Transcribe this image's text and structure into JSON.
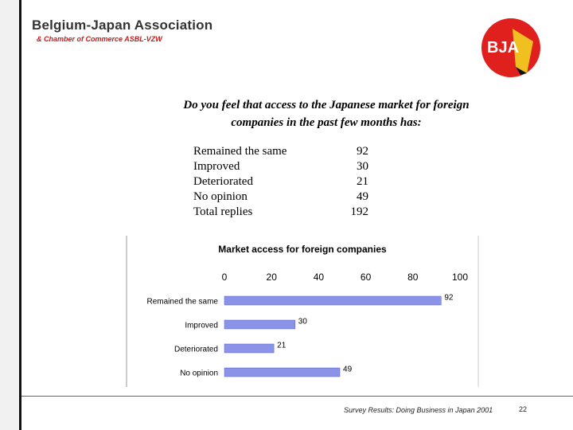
{
  "header": {
    "org_name": "Belgium-Japan Association",
    "org_subtitle": "& Chamber of Commerce ASBL-VZW",
    "logo_text": "BJA"
  },
  "question": {
    "line1": "Do you feel that access to the Japanese market for foreign",
    "line2": "companies in the past few months has:"
  },
  "results": [
    {
      "label": "Remained the same",
      "value": "92"
    },
    {
      "label": "Improved",
      "value": "30"
    },
    {
      "label": "Deteriorated",
      "value": "21"
    },
    {
      "label": "No opinion",
      "value": "49"
    },
    {
      "label": "Total replies",
      "value": "192"
    }
  ],
  "chart_data": {
    "type": "bar",
    "orientation": "horizontal",
    "title": "Market access for foreign companies",
    "categories": [
      "Remained the same",
      "Improved",
      "Deteriorated",
      "No opinion"
    ],
    "values": [
      92,
      30,
      21,
      49
    ],
    "xlim": [
      0,
      100
    ],
    "xticks": [
      0,
      20,
      40,
      60,
      80,
      100
    ],
    "x_axis_position": "top",
    "data_labels": true,
    "bar_color": "#8b93e8",
    "grid": false,
    "legend": "none"
  },
  "footer": {
    "text": "Survey Results: Doing Business in Japan 2001",
    "page_number": "22"
  },
  "colors": {
    "brand_red": "#e0201c",
    "brand_yellow": "#f0c020",
    "rule": "#b04040"
  }
}
